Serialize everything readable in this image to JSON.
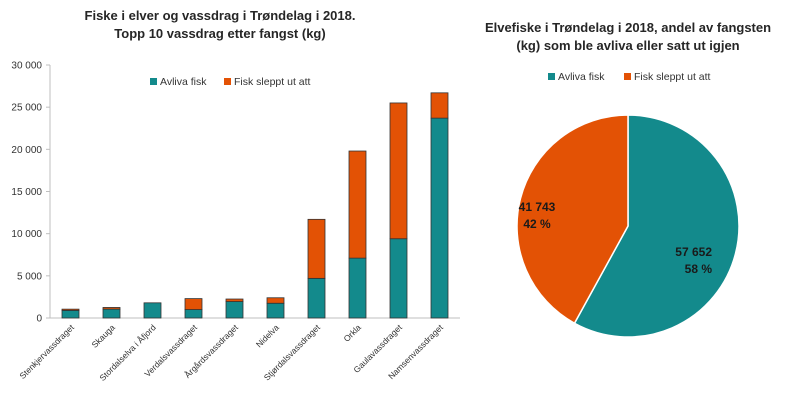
{
  "chart_data": [
    {
      "type": "bar",
      "stacked": true,
      "title_lines": [
        "Fiske i elver og vassdrag i Trøndelag i 2018.",
        "Topp 10 vassdrag etter fangst (kg)"
      ],
      "categories": [
        "Stenkjervassdraget",
        "Skauga",
        "Stordalselva i Åfjord",
        "Verdalsvassdraget",
        "Årgårdsvassdraget",
        "Nidelva",
        "Stjørdalsvassdraget",
        "Orkla",
        "Gaulavassdraget",
        "Namsenvassdraget"
      ],
      "series": [
        {
          "name": "Avliva fisk",
          "color": "#138A8C",
          "values": [
            900,
            1050,
            1800,
            1000,
            1950,
            1750,
            4700,
            7100,
            9400,
            23700
          ]
        },
        {
          "name": "Fisk sleppt ut att",
          "color": "#E35205",
          "values": [
            150,
            200,
            0,
            1300,
            300,
            650,
            7000,
            12700,
            16100,
            3000
          ]
        }
      ],
      "ylim": [
        0,
        30000
      ],
      "yticks": [
        0,
        5000,
        10000,
        15000,
        20000,
        25000,
        30000
      ],
      "ytick_labels": [
        "0",
        "5 000",
        "10 000",
        "15 000",
        "20 000",
        "25 000",
        "30 000"
      ],
      "legend_position": "top-center"
    },
    {
      "type": "pie",
      "title_lines": [
        "Elvefiske i Trøndelag i 2018, andel av fangsten",
        "(kg) som ble avliva eller satt ut igjen"
      ],
      "legend": [
        "Avliva fisk",
        "Fisk sleppt ut att"
      ],
      "slices": [
        {
          "name": "Avliva fisk",
          "value": 57652,
          "value_label": "57 652",
          "percent_label": "58 %",
          "color": "#138A8C"
        },
        {
          "name": "Fisk sleppt ut att",
          "value": 41743,
          "value_label": "41 743",
          "percent_label": "42 %",
          "color": "#E35205"
        }
      ],
      "legend_position": "top-center"
    }
  ]
}
